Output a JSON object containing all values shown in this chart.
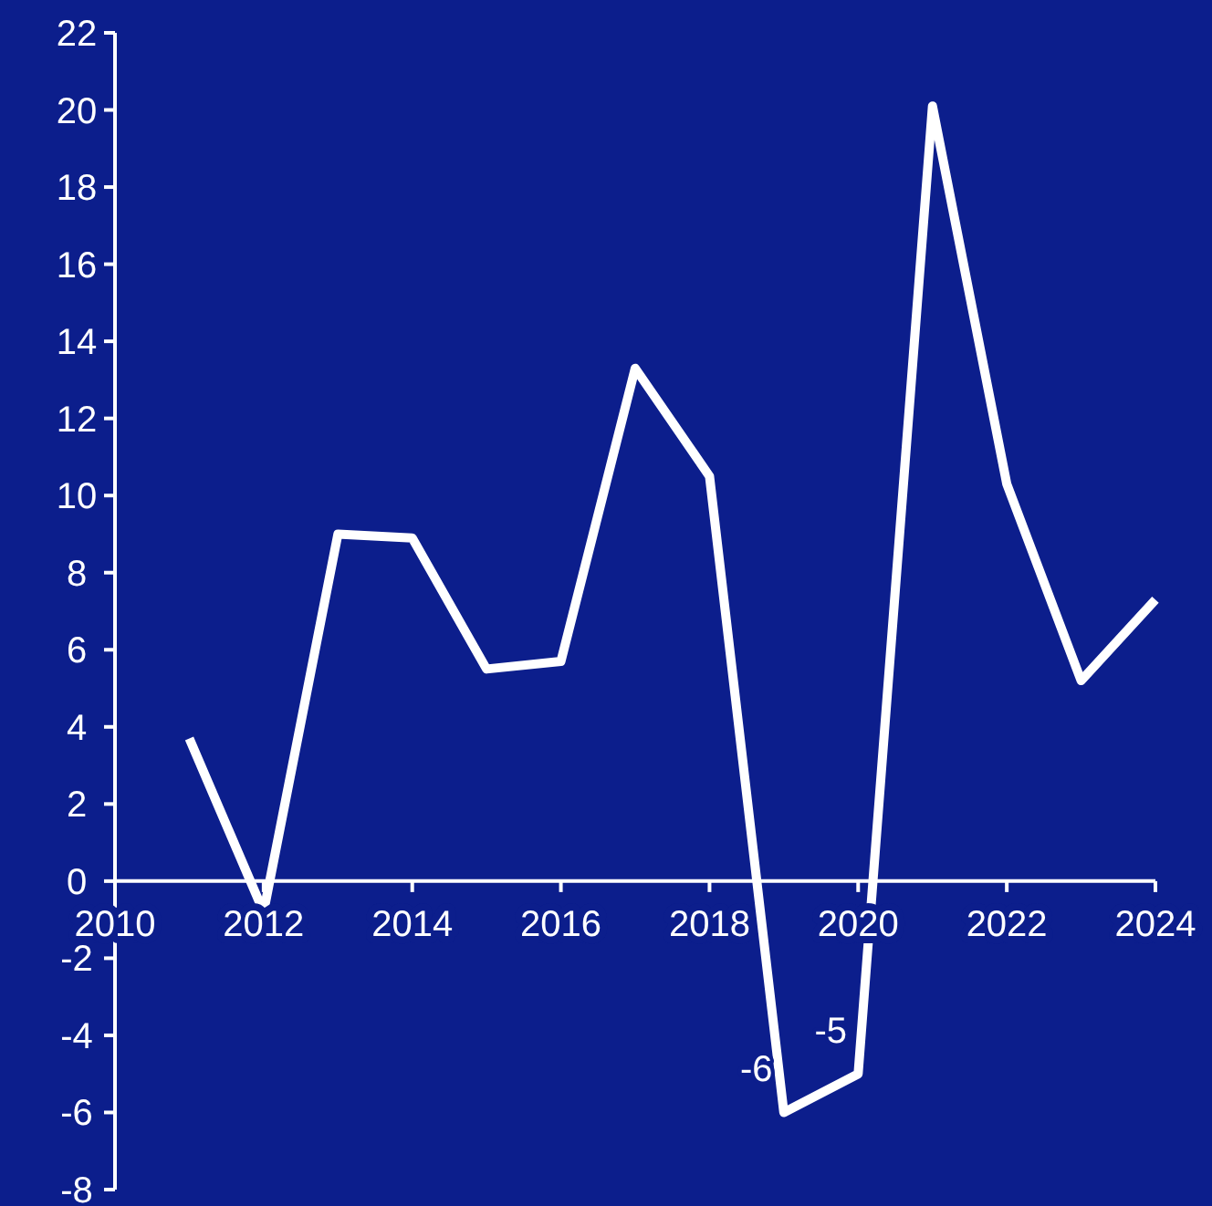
{
  "chart_data": {
    "type": "line",
    "x": [
      2011,
      2012,
      2013,
      2014,
      2015,
      2016,
      2017,
      2018,
      2019,
      2020,
      2021,
      2022,
      2023,
      2024
    ],
    "series": [
      {
        "color": "#ffffff",
        "values": [
          3.7,
          -0.8,
          9.0,
          8.9,
          5.5,
          5.7,
          13.3,
          10.5,
          -6,
          -5,
          20.1,
          10.3,
          5.2,
          7.3
        ],
        "value_labels": [
          null,
          null,
          null,
          null,
          null,
          null,
          null,
          null,
          "-6",
          "-5",
          null,
          null,
          null,
          null
        ]
      }
    ],
    "xlim": [
      2010,
      2024
    ],
    "xticks": [
      2010,
      2012,
      2014,
      2016,
      2018,
      2020,
      2022,
      2024
    ],
    "ylim": [
      -8,
      22
    ],
    "yticks": [
      -8,
      -6,
      -4,
      -2,
      0,
      2,
      4,
      6,
      8,
      10,
      12,
      14,
      16,
      18,
      20,
      22
    ],
    "grid": false,
    "marker": "none",
    "line_style": "solid"
  }
}
